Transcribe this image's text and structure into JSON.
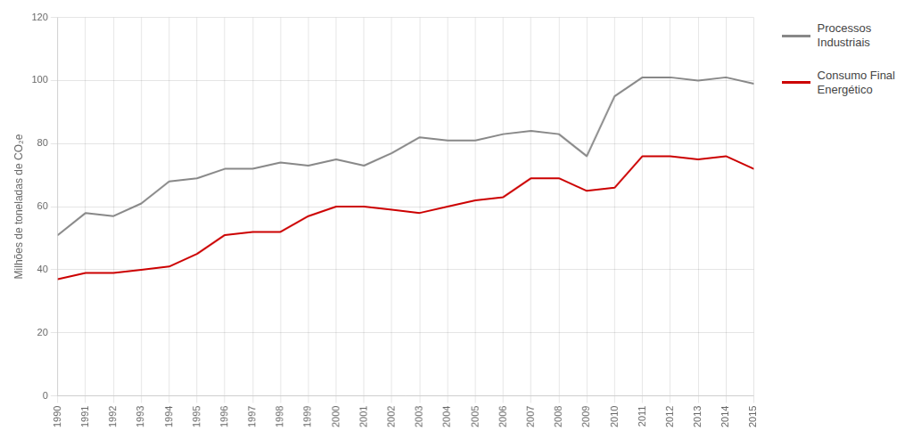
{
  "chart_data": {
    "type": "line",
    "ylabel": "Milhões de toneladas de CO₂e",
    "x": [
      1990,
      1991,
      1992,
      1993,
      1994,
      1995,
      1996,
      1997,
      1998,
      1999,
      2000,
      2001,
      2002,
      2003,
      2004,
      2005,
      2006,
      2007,
      2008,
      2009,
      2010,
      2011,
      2012,
      2013,
      2014,
      2015
    ],
    "series": [
      {
        "name": "Processos\nIndustriais",
        "color": "#888888",
        "values": [
          51,
          58,
          57,
          61,
          68,
          69,
          72,
          72,
          74,
          73,
          75,
          73,
          77,
          82,
          81,
          81,
          83,
          84,
          83,
          76,
          95,
          101,
          101,
          100,
          101,
          99
        ]
      },
      {
        "name": "Consumo Final\nEnergético",
        "color": "#cc0000",
        "values": [
          37,
          39,
          39,
          40,
          41,
          45,
          51,
          52,
          52,
          57,
          60,
          60,
          59,
          58,
          60,
          62,
          63,
          69,
          69,
          65,
          66,
          76,
          76,
          75,
          76,
          72
        ]
      }
    ],
    "xlim": [
      1990,
      2015
    ],
    "xticks": [
      1990,
      1991,
      1992,
      1993,
      1994,
      1995,
      1996,
      1997,
      1998,
      1999,
      2000,
      2001,
      2002,
      2003,
      2004,
      2005,
      2006,
      2007,
      2008,
      2009,
      2010,
      2011,
      2012,
      2013,
      2014,
      2015
    ],
    "ylim": [
      0,
      120
    ],
    "yticks": [
      0,
      20,
      40,
      60,
      80,
      100,
      120
    ],
    "grid": true,
    "legend": "right"
  }
}
